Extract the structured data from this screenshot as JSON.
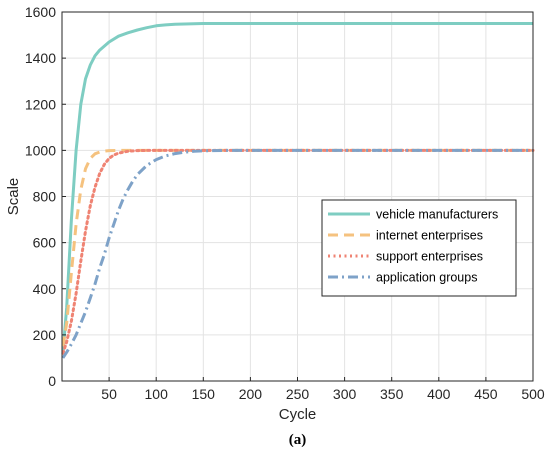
{
  "chart_data": {
    "type": "line",
    "title": "",
    "caption": "(a)",
    "xlabel": "Cycle",
    "ylabel": "Scale",
    "xlim": [
      0,
      500
    ],
    "ylim": [
      0,
      1600
    ],
    "xticks": [
      50,
      100,
      150,
      200,
      250,
      300,
      350,
      400,
      450,
      500
    ],
    "yticks": [
      0,
      200,
      400,
      600,
      800,
      1000,
      1200,
      1400,
      1600
    ],
    "grid": true,
    "legend_position": "right",
    "series": [
      {
        "name": "vehicle manufacturers",
        "color": "#7ecdc2",
        "style": "solid",
        "x": [
          1,
          5,
          10,
          15,
          20,
          25,
          30,
          35,
          40,
          50,
          60,
          70,
          80,
          90,
          100,
          110,
          120,
          130,
          150,
          175,
          200,
          250,
          300,
          350,
          400,
          450,
          500
        ],
        "y": [
          120,
          320,
          700,
          1000,
          1200,
          1310,
          1370,
          1410,
          1435,
          1470,
          1495,
          1510,
          1522,
          1532,
          1540,
          1544,
          1547,
          1548,
          1550,
          1550,
          1550,
          1550,
          1550,
          1550,
          1550,
          1550,
          1550
        ]
      },
      {
        "name": "internet enterprises",
        "color": "#f5c27f",
        "style": "dash",
        "x": [
          1,
          5,
          10,
          15,
          20,
          25,
          30,
          35,
          40,
          45,
          50,
          60,
          80,
          100,
          150,
          200,
          300,
          400,
          500
        ],
        "y": [
          150,
          250,
          470,
          680,
          830,
          920,
          965,
          985,
          993,
          997,
          999,
          1000,
          1000,
          1000,
          1000,
          1000,
          1000,
          1000,
          1000
        ]
      },
      {
        "name": "support enterprises",
        "color": "#ef8373",
        "style": "dot",
        "x": [
          1,
          5,
          10,
          15,
          20,
          25,
          30,
          35,
          40,
          45,
          50,
          55,
          60,
          70,
          80,
          90,
          100,
          150,
          200,
          300,
          400,
          500
        ],
        "y": [
          120,
          170,
          260,
          380,
          520,
          650,
          760,
          840,
          900,
          940,
          965,
          980,
          988,
          996,
          999,
          1000,
          1000,
          1000,
          1000,
          1000,
          1000,
          1000
        ]
      },
      {
        "name": "application groups",
        "color": "#7ea2c8",
        "style": "dashdot",
        "x": [
          1,
          5,
          10,
          15,
          20,
          25,
          30,
          35,
          40,
          45,
          50,
          55,
          60,
          65,
          70,
          75,
          80,
          90,
          100,
          110,
          120,
          130,
          140,
          150,
          175,
          200,
          250,
          300,
          400,
          500
        ],
        "y": [
          100,
          125,
          160,
          200,
          250,
          300,
          360,
          420,
          490,
          550,
          620,
          680,
          740,
          790,
          830,
          865,
          895,
          935,
          960,
          976,
          986,
          992,
          996,
          998,
          1000,
          1000,
          1000,
          1000,
          1000,
          1000
        ]
      }
    ]
  }
}
